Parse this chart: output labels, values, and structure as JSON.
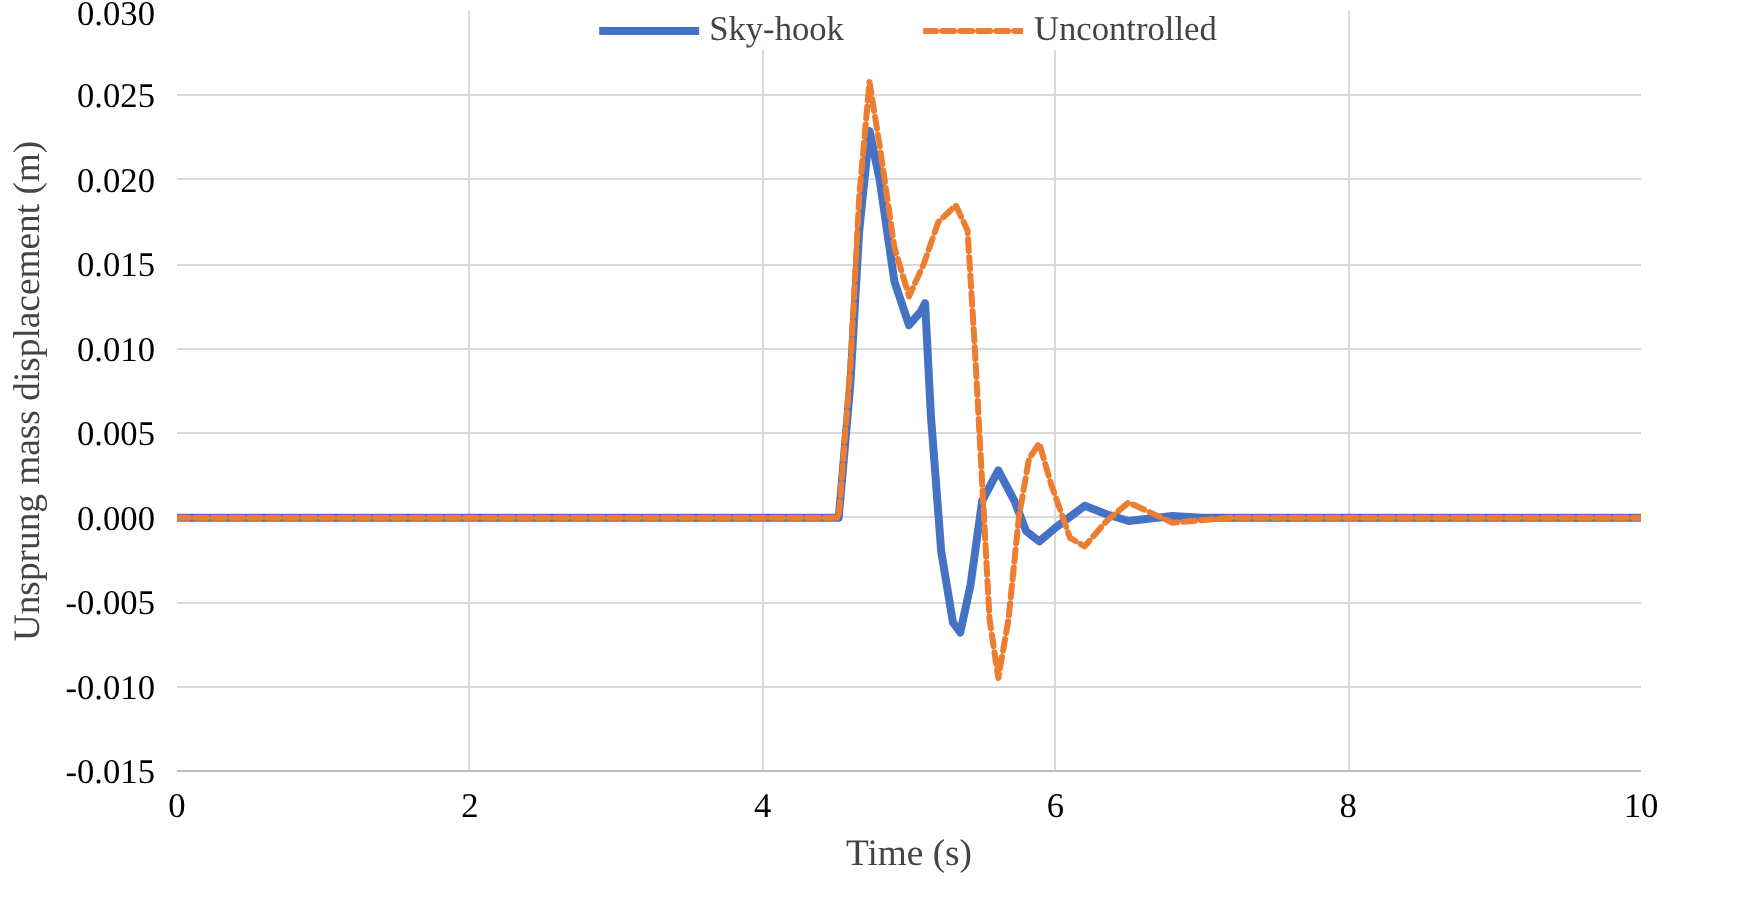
{
  "chart_data": {
    "type": "line",
    "xlabel": "Time (s)",
    "ylabel": "Unsprung mass displacement (m)",
    "xlim": [
      0,
      10
    ],
    "xticks": [
      0,
      2,
      4,
      6,
      8,
      10
    ],
    "ylim": [
      -0.015,
      0.03
    ],
    "yticks": [
      {
        "value": -0.015,
        "label": "-0.015"
      },
      {
        "value": -0.01,
        "label": "-0.010"
      },
      {
        "value": -0.005,
        "label": "-0.005"
      },
      {
        "value": 0,
        "label": "0.000"
      },
      {
        "value": 0.005,
        "label": "0.005"
      },
      {
        "value": 0.01,
        "label": "0.010"
      },
      {
        "value": 0.015,
        "label": "0.015"
      },
      {
        "value": 0.02,
        "label": "0.020"
      },
      {
        "value": 0.025,
        "label": "0.025"
      },
      {
        "value": 0.03,
        "label": "0.030"
      }
    ],
    "grid": true,
    "legend": "top",
    "series": [
      {
        "name": "Sky-hook",
        "color": "#4472c4",
        "line_style": "solid",
        "x": [
          0,
          4.52,
          4.6,
          4.66,
          4.73,
          4.8,
          4.9,
          5.0,
          5.08,
          5.11,
          5.15,
          5.22,
          5.3,
          5.35,
          5.42,
          5.5,
          5.61,
          5.72,
          5.8,
          5.89,
          6.0,
          6.2,
          6.35,
          6.5,
          6.8,
          7.0,
          10
        ],
        "values": [
          0,
          0,
          0.008,
          0.017,
          0.0229,
          0.02,
          0.014,
          0.0114,
          0.0122,
          0.0127,
          0.006,
          -0.002,
          -0.0062,
          -0.0068,
          -0.004,
          0.001,
          0.0028,
          0.001,
          -0.0008,
          -0.0014,
          -0.0006,
          0.0007,
          0.0002,
          -0.0002,
          0.0001,
          0,
          0
        ]
      },
      {
        "name": "Uncontrolled",
        "color": "#ed7d31",
        "line_style": "dashed",
        "x": [
          0,
          4.52,
          4.6,
          4.66,
          4.73,
          4.8,
          4.9,
          5.0,
          5.1,
          5.2,
          5.32,
          5.4,
          5.45,
          5.5,
          5.55,
          5.61,
          5.68,
          5.75,
          5.82,
          5.89,
          5.97,
          6.1,
          6.2,
          6.35,
          6.5,
          6.65,
          6.8,
          7.2,
          10
        ],
        "values": [
          0,
          0,
          0.009,
          0.019,
          0.0258,
          0.022,
          0.016,
          0.0131,
          0.015,
          0.0175,
          0.0185,
          0.017,
          0.01,
          0.002,
          -0.006,
          -0.0095,
          -0.006,
          0,
          0.0035,
          0.0044,
          0.002,
          -0.0012,
          -0.0017,
          -0.0002,
          0.0009,
          0.0003,
          -0.0003,
          0,
          0
        ]
      }
    ]
  }
}
